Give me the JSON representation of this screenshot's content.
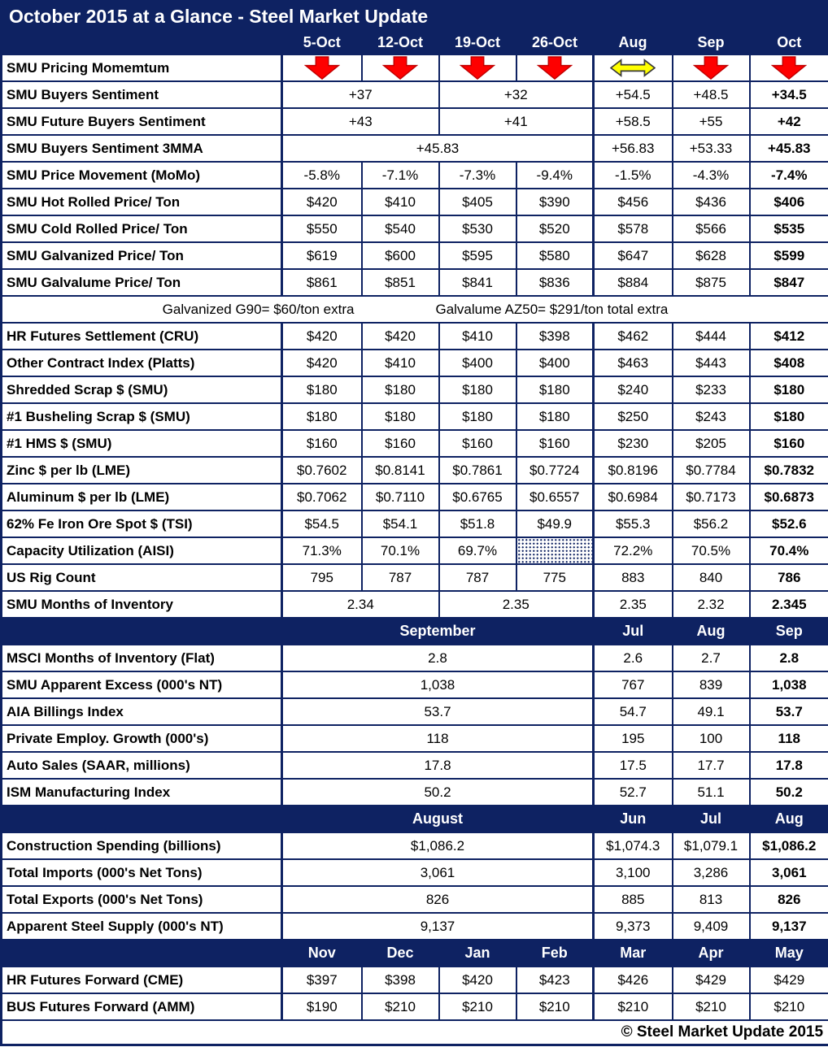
{
  "colors": {
    "navy": "#0E2262",
    "red": "#FE0000",
    "red_outline": "#C00000",
    "yellow": "#FFFF00",
    "yellow_outline": "#3A3A3A"
  },
  "footer": "© Steel Market Update 2015",
  "chart_data": {
    "type": "table",
    "title": "October 2015 at a Glance - Steel Market Update",
    "columns": [
      "5-Oct",
      "12-Oct",
      "19-Oct",
      "26-Oct",
      "Aug",
      "Sep",
      "Oct"
    ],
    "rows": [
      {
        "label": "SMU Pricing Momemtum",
        "cells": [
          {
            "icon": "down-arrow"
          },
          {
            "icon": "down-arrow"
          },
          {
            "icon": "down-arrow"
          },
          {
            "icon": "down-arrow"
          },
          {
            "icon": "flat-arrow"
          },
          {
            "icon": "down-arrow"
          },
          {
            "icon": "down-arrow"
          }
        ],
        "bold": false
      },
      {
        "label": "SMU Buyers Sentiment",
        "cells": [
          {
            "t": "+37",
            "s": 2
          },
          {
            "t": "+32",
            "s": 2
          },
          "+54.5",
          "+48.5",
          "+34.5"
        ]
      },
      {
        "label": "SMU Future Buyers Sentiment",
        "cells": [
          {
            "t": "+43",
            "s": 2
          },
          {
            "t": "+41",
            "s": 2
          },
          "+58.5",
          "+55",
          "+42"
        ]
      },
      {
        "label": "SMU Buyers Sentiment 3MMA",
        "cells": [
          {
            "t": "+45.83",
            "s": 4
          },
          "+56.83",
          "+53.33",
          "+45.83"
        ]
      },
      {
        "label": "SMU Price Movement (MoMo)",
        "cells": [
          "-5.8%",
          "-7.1%",
          "-7.3%",
          "-9.4%",
          "-1.5%",
          "-4.3%",
          "-7.4%"
        ]
      },
      {
        "label": "SMU Hot Rolled Price/ Ton",
        "cells": [
          "$420",
          "$410",
          "$405",
          "$390",
          "$456",
          "$436",
          "$406"
        ]
      },
      {
        "label": "SMU Cold Rolled Price/ Ton",
        "cells": [
          "$550",
          "$540",
          "$530",
          "$520",
          "$578",
          "$566",
          "$535"
        ]
      },
      {
        "label": "SMU Galvanized Price/ Ton",
        "cells": [
          "$619",
          "$600",
          "$595",
          "$580",
          "$647",
          "$628",
          "$599"
        ]
      },
      {
        "label": "SMU Galvalume Price/ Ton",
        "cells": [
          "$861",
          "$851",
          "$841",
          "$836",
          "$884",
          "$875",
          "$847"
        ]
      },
      {
        "type": "note",
        "parts": [
          "Galvanized G90= $60/ton extra",
          "Galvalume AZ50= $291/ton total extra"
        ]
      },
      {
        "label": "HR Futures Settlement (CRU)",
        "cells": [
          "$420",
          "$420",
          "$410",
          "$398",
          "$462",
          "$444",
          "$412"
        ]
      },
      {
        "label": "Other Contract Index (Platts)",
        "cells": [
          "$420",
          "$410",
          "$400",
          "$400",
          "$463",
          "$443",
          "$408"
        ]
      },
      {
        "label": "Shredded Scrap $ (SMU)",
        "cells": [
          "$180",
          "$180",
          "$180",
          "$180",
          "$240",
          "$233",
          "$180"
        ]
      },
      {
        "label": "#1 Busheling Scrap $ (SMU)",
        "cells": [
          "$180",
          "$180",
          "$180",
          "$180",
          "$250",
          "$243",
          "$180"
        ]
      },
      {
        "label": "#1 HMS $ (SMU)",
        "cells": [
          "$160",
          "$160",
          "$160",
          "$160",
          "$230",
          "$205",
          "$160"
        ]
      },
      {
        "label": "Zinc $ per lb (LME)",
        "cells": [
          "$0.7602",
          "$0.8141",
          "$0.7861",
          "$0.7724",
          "$0.8196",
          "$0.7784",
          "$0.7832"
        ]
      },
      {
        "label": "Aluminum $ per lb (LME)",
        "cells": [
          "$0.7062",
          "$0.7110",
          "$0.6765",
          "$0.6557",
          "$0.6984",
          "$0.7173",
          "$0.6873"
        ]
      },
      {
        "label": "62% Fe Iron Ore Spot $ (TSI)",
        "cells": [
          "$54.5",
          "$54.1",
          "$51.8",
          "$49.9",
          "$55.3",
          "$56.2",
          "$52.6"
        ]
      },
      {
        "label": "Capacity Utilization (AISI)",
        "cells": [
          "71.3%",
          "70.1%",
          "69.7%",
          {
            "hatch": true
          },
          "72.2%",
          "70.5%",
          "70.4%"
        ]
      },
      {
        "label": "US Rig Count",
        "cells": [
          "795",
          "787",
          "787",
          "775",
          "883",
          "840",
          "786"
        ]
      },
      {
        "label": "SMU Months of Inventory",
        "cells": [
          {
            "t": "2.34",
            "s": 2
          },
          {
            "t": "2.35",
            "s": 2
          },
          "2.35",
          "2.32",
          "2.345"
        ]
      },
      {
        "type": "subheader",
        "cells": [
          {
            "t": "September",
            "s": 4
          },
          "Jul",
          "Aug",
          "Sep"
        ]
      },
      {
        "label": "MSCI Months of Inventory (Flat)",
        "cells": [
          {
            "t": "2.8",
            "s": 4
          },
          "2.6",
          "2.7",
          "2.8"
        ]
      },
      {
        "label": "SMU Apparent Excess (000's NT)",
        "cells": [
          {
            "t": "1,038",
            "s": 4
          },
          "767",
          "839",
          "1,038"
        ]
      },
      {
        "label": "AIA Billings Index",
        "cells": [
          {
            "t": "53.7",
            "s": 4
          },
          "54.7",
          "49.1",
          "53.7"
        ]
      },
      {
        "label": "Private Employ. Growth (000's)",
        "cells": [
          {
            "t": "118",
            "s": 4
          },
          "195",
          "100",
          "118"
        ]
      },
      {
        "label": "Auto Sales (SAAR, millions)",
        "cells": [
          {
            "t": "17.8",
            "s": 4
          },
          "17.5",
          "17.7",
          "17.8"
        ]
      },
      {
        "label": "ISM Manufacturing Index",
        "cells": [
          {
            "t": "50.2",
            "s": 4
          },
          "52.7",
          "51.1",
          "50.2"
        ]
      },
      {
        "type": "subheader",
        "cells": [
          {
            "t": "August",
            "s": 4
          },
          "Jun",
          "Jul",
          "Aug"
        ]
      },
      {
        "label": "Construction Spending (billions)",
        "cells": [
          {
            "t": "$1,086.2",
            "s": 4
          },
          "$1,074.3",
          "$1,079.1",
          "$1,086.2"
        ]
      },
      {
        "label": "Total Imports (000's Net Tons)",
        "cells": [
          {
            "t": "3,061",
            "s": 4
          },
          "3,100",
          "3,286",
          "3,061"
        ]
      },
      {
        "label": "Total Exports (000's Net Tons)",
        "cells": [
          {
            "t": "826",
            "s": 4
          },
          "885",
          "813",
          "826"
        ]
      },
      {
        "label": "Apparent Steel Supply (000's NT)",
        "cells": [
          {
            "t": "9,137",
            "s": 4
          },
          "9,373",
          "9,409",
          "9,137"
        ]
      },
      {
        "type": "subheader",
        "cells": [
          "Nov",
          "Dec",
          "Jan",
          "Feb",
          "Mar",
          "Apr",
          "May"
        ]
      },
      {
        "label": "HR Futures Forward (CME)",
        "cells": [
          "$397",
          "$398",
          "$420",
          "$423",
          "$426",
          "$429",
          "$429"
        ],
        "bold": false
      },
      {
        "label": "BUS Futures Forward (AMM)",
        "cells": [
          "$190",
          "$210",
          "$210",
          "$210",
          "$210",
          "$210",
          "$210"
        ],
        "bold": false
      }
    ]
  }
}
